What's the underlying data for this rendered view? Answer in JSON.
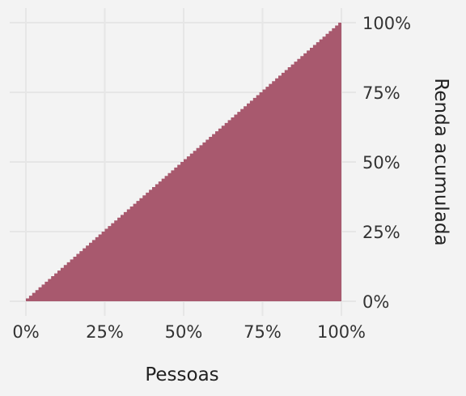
{
  "chart_data": {
    "type": "area",
    "title": "",
    "xlabel": "Pessoas",
    "ylabel": "Renda acumulada",
    "x_axis_position": "bottom",
    "y_axis_position": "right",
    "xlim": [
      0,
      100
    ],
    "ylim": [
      0,
      100
    ],
    "x_ticks": [
      "0%",
      "25%",
      "50%",
      "75%",
      "100%"
    ],
    "y_ticks": [
      "0%",
      "25%",
      "50%",
      "75%",
      "100%"
    ],
    "grid": true,
    "series": [
      {
        "x": [
          0,
          25,
          50,
          75,
          100
        ],
        "y": [
          0,
          25,
          50,
          75,
          100
        ],
        "color": "#a8596e",
        "style": "stepped"
      }
    ]
  }
}
